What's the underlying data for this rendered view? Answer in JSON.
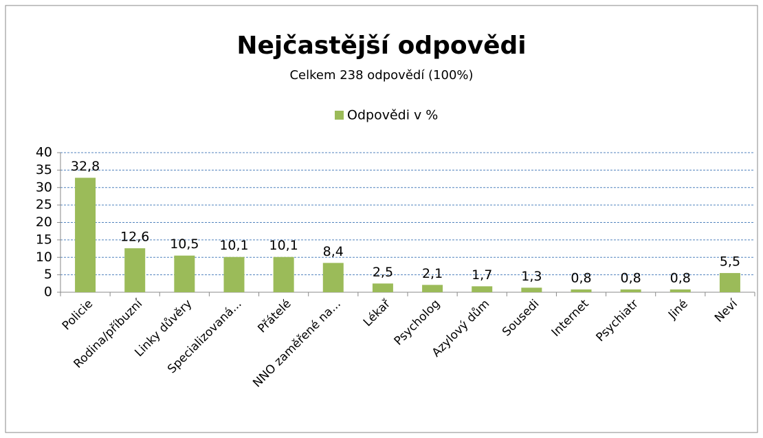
{
  "chart_data": {
    "type": "bar",
    "title": "Nejčastější odpovědi",
    "subtitle": "Celkem 238 odpovědí (100%)",
    "categories": [
      "Policie",
      "Rodina/příbuzní",
      "Linky důvěry",
      "Specializovaná...",
      "Přátelé",
      "NNO zaměřené na...",
      "Lékař",
      "Psycholog",
      "Azylový dům",
      "Sousedi",
      "Internet",
      "Psychiatr",
      "Jiné",
      "Neví"
    ],
    "series": [
      {
        "name": "Odpovědi v %",
        "color": "#9bbb59",
        "values": [
          32.8,
          12.6,
          10.5,
          10.1,
          10.1,
          8.4,
          2.5,
          2.1,
          1.7,
          1.3,
          0.8,
          0.8,
          0.8,
          5.5
        ],
        "value_labels": [
          "32,8",
          "12,6",
          "10,5",
          "10,1",
          "10,1",
          "8,4",
          "2,5",
          "2,1",
          "1,7",
          "1,3",
          "0,8",
          "0,8",
          "0,8",
          "5,5"
        ]
      }
    ],
    "ylim": [
      0,
      40
    ],
    "yticks": [
      0,
      5,
      10,
      15,
      20,
      25,
      30,
      35,
      40
    ],
    "grid": true,
    "legend": "top"
  }
}
